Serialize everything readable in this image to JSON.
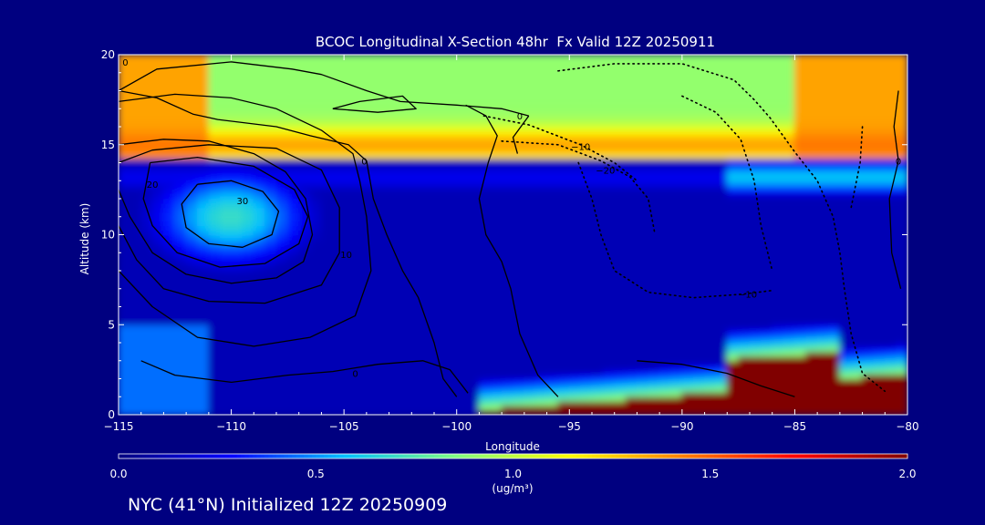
{
  "chart_data": {
    "type": "heatmap",
    "title": "BCOC Longitudinal X-Section 48hr  Fx Valid 12Z 20250911",
    "xlabel": "Longitude",
    "ylabel": "Altitude (km)",
    "xlim": [
      -115,
      -80
    ],
    "ylim": [
      0,
      20
    ],
    "x_ticks": [
      -115,
      -110,
      -105,
      -100,
      -95,
      -90,
      -85,
      -80
    ],
    "x_tick_labels": [
      "−115",
      "−110",
      "−105",
      "−100",
      "−95",
      "−90",
      "−85",
      "−80"
    ],
    "y_ticks": [
      0,
      5,
      10,
      15,
      20
    ],
    "y_tick_labels": [
      "0",
      "5",
      "10",
      "15",
      "20"
    ],
    "colorbar": {
      "min": 0.0,
      "max": 2.0,
      "ticks": [
        0.0,
        0.5,
        1.0,
        1.5,
        2.0
      ],
      "tick_labels": [
        "0.0",
        "0.5",
        "1.0",
        "1.5",
        "2.0"
      ],
      "unit_label": "(ug/m³)",
      "colormap": [
        "#000080",
        "#0000ff",
        "#00c0ff",
        "#80ff80",
        "#ffff00",
        "#ff8000",
        "#ff0000",
        "#800000"
      ]
    },
    "fields": {
      "background": 0.12,
      "stratospheric_band": {
        "base_km": 14.2,
        "top_km": 20,
        "peak_km": 15.0,
        "peak_value": 1.35,
        "upper_value": 0.9
      },
      "left_anomaly": {
        "center_lon": -110.0,
        "center_km": 11.0,
        "value": 0.7
      },
      "surface_plume": {
        "lon_range": [
          -99,
          -80
        ],
        "top_km": [
          0.3,
          2.0
        ],
        "value": 2.0,
        "halo_value": 0.7
      }
    },
    "contour_labels": [
      {
        "text": "0",
        "lon": -114.7,
        "km": 19.6
      },
      {
        "text": "0",
        "lon": -97.2,
        "km": 16.6
      },
      {
        "text": "0",
        "lon": -104.1,
        "km": 14.1
      },
      {
        "text": "0",
        "lon": -80.4,
        "km": 14.1
      },
      {
        "text": "10",
        "lon": -104.9,
        "km": 8.9
      },
      {
        "text": "20",
        "lon": -113.5,
        "km": 12.8
      },
      {
        "text": "30",
        "lon": -109.5,
        "km": 11.9
      },
      {
        "text": "0",
        "lon": -104.5,
        "km": 2.3
      },
      {
        "text": "−10",
        "lon": -94.5,
        "km": 14.9
      },
      {
        "text": "−20",
        "lon": -93.4,
        "km": 13.6
      },
      {
        "text": "−10",
        "lon": -87.1,
        "km": 6.7
      }
    ],
    "contours": [
      {
        "style": "solid",
        "points": [
          [
            -115,
            18.0
          ],
          [
            -113.3,
            19.2
          ],
          [
            -110.0,
            19.6
          ],
          [
            -107.3,
            19.2
          ],
          [
            -106.0,
            18.9
          ],
          [
            -104.0,
            18.0
          ],
          [
            -102.5,
            17.4
          ],
          [
            -100.0,
            17.2
          ],
          [
            -98.0,
            17.0
          ],
          [
            -96.8,
            16.6
          ]
        ]
      },
      {
        "style": "solid",
        "points": [
          [
            -115,
            18.0
          ],
          [
            -113.3,
            17.6
          ],
          [
            -111.7,
            16.7
          ],
          [
            -110.6,
            16.4
          ],
          [
            -108.0,
            16.0
          ],
          [
            -106.5,
            15.5
          ],
          [
            -104.8,
            15.0
          ],
          [
            -104.0,
            14.1
          ],
          [
            -103.7,
            12.0
          ],
          [
            -103.1,
            10.0
          ],
          [
            -102.4,
            8.0
          ],
          [
            -101.7,
            6.5
          ],
          [
            -101.0,
            4.0
          ],
          [
            -100.6,
            2.0
          ],
          [
            -100.0,
            1.0
          ]
        ]
      },
      {
        "style": "solid",
        "points": [
          [
            -105.5,
            17.0
          ],
          [
            -104.3,
            17.4
          ],
          [
            -102.4,
            17.7
          ],
          [
            -101.8,
            17.0
          ],
          [
            -103.5,
            16.8
          ],
          [
            -105.5,
            17.0
          ]
        ]
      },
      {
        "style": "solid",
        "points": [
          [
            -115,
            15.0
          ],
          [
            -113.0,
            15.3
          ],
          [
            -111.0,
            15.2
          ],
          [
            -109.0,
            14.5
          ],
          [
            -107.6,
            13.5
          ],
          [
            -106.7,
            12.0
          ],
          [
            -106.4,
            10.0
          ],
          [
            -106.8,
            8.5
          ],
          [
            -108.0,
            7.6
          ],
          [
            -110.0,
            7.3
          ],
          [
            -112.0,
            7.8
          ],
          [
            -113.5,
            9.0
          ],
          [
            -114.5,
            11.0
          ],
          [
            -115,
            12.5
          ]
        ]
      },
      {
        "style": "solid",
        "points": [
          [
            -111.5,
            12.8
          ],
          [
            -110.0,
            13.0
          ],
          [
            -108.6,
            12.4
          ],
          [
            -107.9,
            11.3
          ],
          [
            -108.2,
            10.0
          ],
          [
            -109.5,
            9.3
          ],
          [
            -111.0,
            9.5
          ],
          [
            -112.0,
            10.4
          ],
          [
            -112.2,
            11.7
          ],
          [
            -111.5,
            12.8
          ]
        ]
      },
      {
        "style": "solid",
        "points": [
          [
            -113.6,
            14.0
          ],
          [
            -111.5,
            14.3
          ],
          [
            -109.0,
            13.8
          ],
          [
            -107.2,
            12.5
          ],
          [
            -106.6,
            11.0
          ],
          [
            -107.0,
            9.5
          ],
          [
            -108.5,
            8.4
          ],
          [
            -110.5,
            8.2
          ],
          [
            -112.4,
            9.0
          ],
          [
            -113.5,
            10.5
          ],
          [
            -113.9,
            12.0
          ],
          [
            -113.6,
            14.0
          ]
        ]
      },
      {
        "style": "solid",
        "points": [
          [
            -115,
            14.0
          ],
          [
            -113.5,
            14.7
          ],
          [
            -111.0,
            15.0
          ],
          [
            -108.0,
            14.8
          ],
          [
            -106.0,
            13.6
          ],
          [
            -105.2,
            11.5
          ],
          [
            -105.2,
            9.0
          ],
          [
            -106.0,
            7.2
          ],
          [
            -108.5,
            6.2
          ],
          [
            -111.0,
            6.3
          ],
          [
            -113.0,
            7.0
          ],
          [
            -114.2,
            8.6
          ],
          [
            -115,
            10.5
          ]
        ]
      },
      {
        "style": "solid",
        "points": [
          [
            -115,
            8.0
          ],
          [
            -113.5,
            6.0
          ],
          [
            -111.5,
            4.3
          ],
          [
            -109.0,
            3.8
          ],
          [
            -106.5,
            4.3
          ],
          [
            -104.5,
            5.5
          ],
          [
            -103.8,
            8.0
          ],
          [
            -104.0,
            11.0
          ],
          [
            -104.3,
            13.0
          ],
          [
            -104.6,
            14.5
          ],
          [
            -106.0,
            15.8
          ],
          [
            -108.0,
            17.0
          ],
          [
            -110.0,
            17.6
          ],
          [
            -112.5,
            17.8
          ],
          [
            -115,
            17.4
          ]
        ]
      },
      {
        "style": "solid",
        "points": [
          [
            -114.0,
            3.0
          ],
          [
            -112.5,
            2.2
          ],
          [
            -110.0,
            1.8
          ],
          [
            -107.5,
            2.2
          ],
          [
            -105.5,
            2.4
          ],
          [
            -103.5,
            2.8
          ],
          [
            -101.5,
            3.0
          ],
          [
            -100.3,
            2.5
          ],
          [
            -99.5,
            1.2
          ]
        ]
      },
      {
        "style": "solid",
        "points": [
          [
            -99.6,
            17.2
          ],
          [
            -98.7,
            16.6
          ],
          [
            -98.2,
            15.5
          ],
          [
            -98.6,
            14.0
          ],
          [
            -99.0,
            12.0
          ],
          [
            -98.7,
            10.0
          ],
          [
            -98.0,
            8.5
          ],
          [
            -97.6,
            7.0
          ],
          [
            -97.2,
            4.5
          ],
          [
            -96.4,
            2.2
          ],
          [
            -95.5,
            1.0
          ]
        ]
      },
      {
        "style": "solid",
        "points": [
          [
            -96.8,
            16.6
          ],
          [
            -97.5,
            15.4
          ],
          [
            -97.3,
            14.5
          ]
        ]
      },
      {
        "style": "solid",
        "points": [
          [
            -80.4,
            18.0
          ],
          [
            -80.6,
            16.0
          ],
          [
            -80.4,
            14.1
          ],
          [
            -80.8,
            12.0
          ],
          [
            -80.7,
            9.0
          ],
          [
            -80.3,
            7.0
          ]
        ]
      },
      {
        "style": "solid",
        "points": [
          [
            -92.0,
            3.0
          ],
          [
            -90.0,
            2.8
          ],
          [
            -88.0,
            2.3
          ],
          [
            -86.5,
            1.6
          ],
          [
            -85.0,
            1.0
          ]
        ]
      },
      {
        "style": "dotted",
        "points": [
          [
            -98.8,
            16.6
          ],
          [
            -96.8,
            16.1
          ],
          [
            -94.5,
            15.0
          ],
          [
            -93.0,
            14.0
          ],
          [
            -92.0,
            13.0
          ]
        ]
      },
      {
        "style": "dotted",
        "points": [
          [
            -98.0,
            15.2
          ],
          [
            -95.5,
            15.0
          ],
          [
            -93.6,
            14.1
          ],
          [
            -92.3,
            13.2
          ],
          [
            -91.5,
            12.0
          ],
          [
            -91.2,
            10.0
          ]
        ]
      },
      {
        "style": "dotted",
        "points": [
          [
            -95.5,
            19.1
          ],
          [
            -93.0,
            19.5
          ],
          [
            -90.0,
            19.5
          ],
          [
            -87.7,
            18.6
          ],
          [
            -86.8,
            17.5
          ],
          [
            -86.1,
            16.5
          ],
          [
            -85.0,
            14.6
          ],
          [
            -84.0,
            13.0
          ],
          [
            -83.3,
            11.0
          ],
          [
            -83.0,
            9.0
          ],
          [
            -82.8,
            7.0
          ],
          [
            -82.5,
            4.5
          ],
          [
            -82.0,
            2.3
          ],
          [
            -81.0,
            1.3
          ]
        ]
      },
      {
        "style": "dotted",
        "points": [
          [
            -94.6,
            14.0
          ],
          [
            -94.0,
            12.0
          ],
          [
            -93.6,
            10.0
          ],
          [
            -93.0,
            8.0
          ],
          [
            -91.5,
            6.8
          ],
          [
            -89.5,
            6.5
          ],
          [
            -87.3,
            6.7
          ],
          [
            -86.0,
            6.9
          ]
        ]
      },
      {
        "style": "dotted",
        "points": [
          [
            -90.0,
            17.7
          ],
          [
            -88.5,
            16.8
          ],
          [
            -87.4,
            15.3
          ],
          [
            -86.8,
            13.0
          ],
          [
            -86.5,
            10.5
          ],
          [
            -86.0,
            8.0
          ]
        ]
      },
      {
        "style": "dotted",
        "points": [
          [
            -82.0,
            16.0
          ],
          [
            -82.1,
            14.0
          ],
          [
            -82.5,
            11.5
          ]
        ]
      }
    ]
  },
  "footer_text": "NYC (41°N) Initialized 12Z 20250909"
}
